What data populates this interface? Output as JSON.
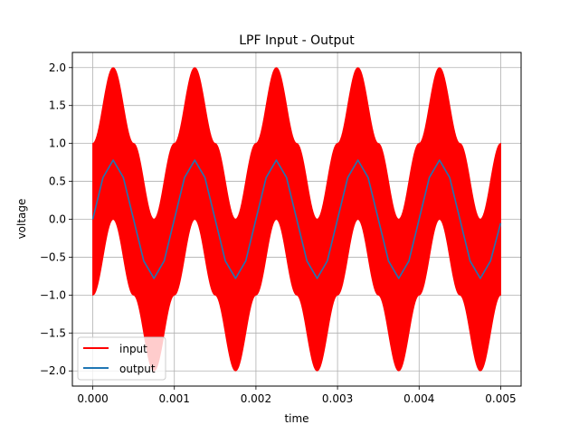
{
  "chart_data": {
    "type": "line",
    "title": "LPF Input - Output",
    "xlabel": "time",
    "ylabel": "voltage",
    "xlim": [
      -0.00025,
      0.00525
    ],
    "ylim": [
      -2.2,
      2.2
    ],
    "grid": true,
    "legend_position": "lower-left",
    "x_ticks": [
      0.0,
      0.001,
      0.002,
      0.003,
      0.004,
      0.005
    ],
    "x_tick_labels": [
      "0.000",
      "0.001",
      "0.002",
      "0.003",
      "0.004",
      "0.005"
    ],
    "y_ticks": [
      -2.0,
      -1.5,
      -1.0,
      -0.5,
      0.0,
      0.5,
      1.0,
      1.5,
      2.0
    ],
    "y_tick_labels": [
      "−2.0",
      "−1.5",
      "−1.0",
      "−0.5",
      "0.0",
      "0.5",
      "1.0",
      "1.5",
      "2.0"
    ],
    "series": [
      {
        "name": "input",
        "color": "#ff0000",
        "band_upper": {
          "x": [
            0.0,
            0.00025,
            0.0005,
            0.00075,
            0.001,
            0.00125,
            0.0015,
            0.00175,
            0.002,
            0.00225,
            0.0025,
            0.00275,
            0.003,
            0.00325,
            0.0035,
            0.00375,
            0.004,
            0.00425,
            0.0045,
            0.00475,
            0.005
          ],
          "values": [
            1.0,
            2.0,
            1.0,
            0.0,
            1.0,
            2.0,
            1.0,
            0.0,
            1.0,
            2.0,
            1.0,
            0.0,
            1.0,
            2.0,
            1.0,
            0.0,
            1.0,
            2.0,
            1.0,
            0.0,
            1.0
          ]
        },
        "band_lower": {
          "x": [
            0.0,
            0.00025,
            0.0005,
            0.00075,
            0.001,
            0.00125,
            0.0015,
            0.00175,
            0.002,
            0.00225,
            0.0025,
            0.00275,
            0.003,
            0.00325,
            0.0035,
            0.00375,
            0.004,
            0.00425,
            0.0045,
            0.00475,
            0.005
          ],
          "values": [
            -1.0,
            0.0,
            -1.0,
            -2.0,
            -1.0,
            0.0,
            -1.0,
            -2.0,
            -1.0,
            0.0,
            -1.0,
            -2.0,
            -1.0,
            0.0,
            -1.0,
            -2.0,
            -1.0,
            0.0,
            -1.0,
            -2.0,
            -1.0
          ]
        }
      },
      {
        "name": "output",
        "color": "#1f77b4",
        "x": [
          0.0,
          0.000125,
          0.00025,
          0.000375,
          0.0005,
          0.000625,
          0.00075,
          0.000875,
          0.001,
          0.001125,
          0.00125,
          0.001375,
          0.0015,
          0.001625,
          0.00175,
          0.001875,
          0.002,
          0.002125,
          0.00225,
          0.002375,
          0.0025,
          0.002625,
          0.00275,
          0.002875,
          0.003,
          0.003125,
          0.00325,
          0.003375,
          0.0035,
          0.003625,
          0.00375,
          0.003875,
          0.004,
          0.004125,
          0.00425,
          0.004375,
          0.0045,
          0.004625,
          0.00475,
          0.004875,
          0.005
        ],
        "values": [
          0.0,
          0.55,
          0.78,
          0.55,
          0.0,
          -0.55,
          -0.78,
          -0.55,
          0.0,
          0.55,
          0.78,
          0.55,
          0.0,
          -0.55,
          -0.78,
          -0.55,
          0.0,
          0.55,
          0.78,
          0.55,
          0.0,
          -0.55,
          -0.78,
          -0.55,
          0.0,
          0.55,
          0.78,
          0.55,
          0.0,
          -0.55,
          -0.78,
          -0.55,
          0.0,
          0.55,
          0.78,
          0.55,
          0.0,
          -0.55,
          -0.78,
          -0.55,
          -0.05
        ]
      }
    ]
  }
}
